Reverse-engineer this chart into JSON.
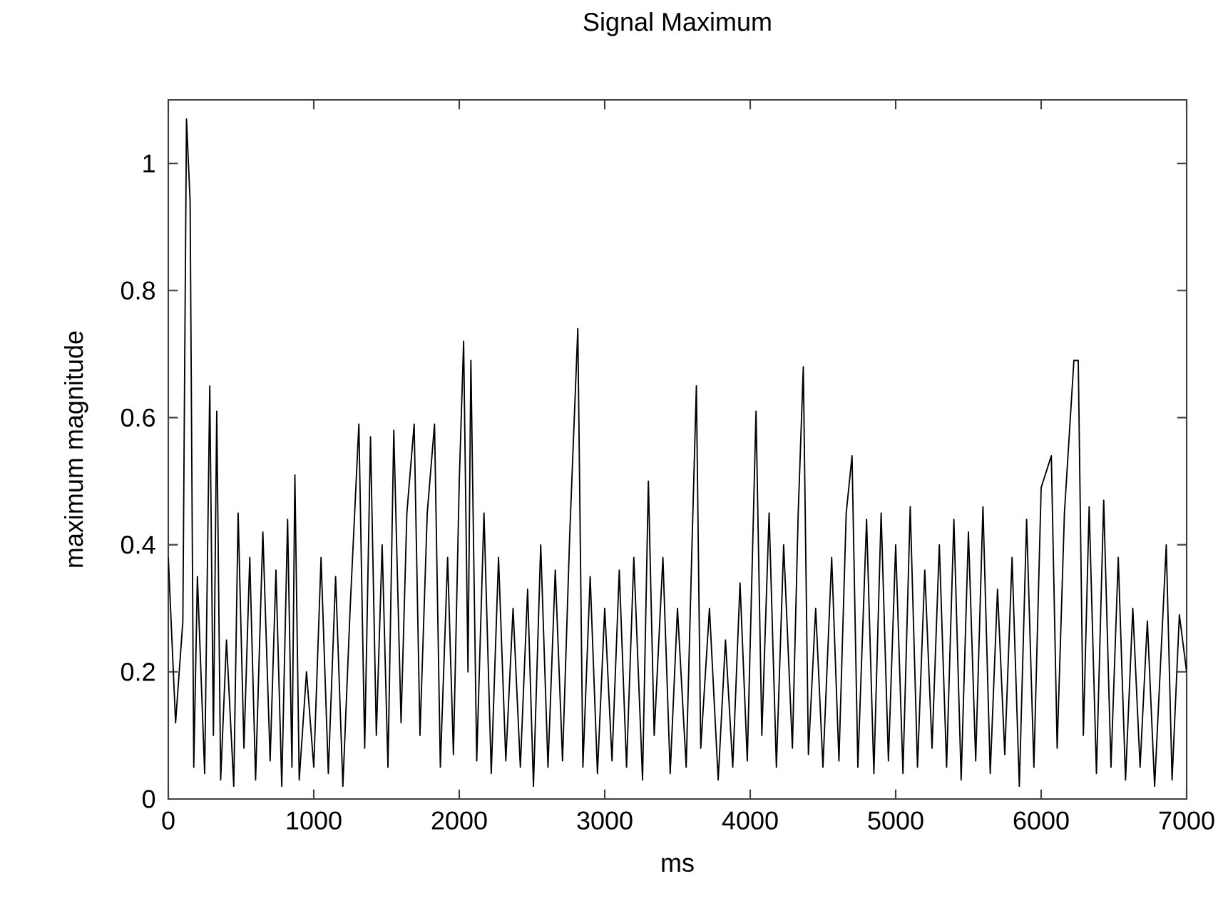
{
  "chart_data": {
    "type": "line",
    "title": "Signal Maximum",
    "xlabel": "ms",
    "ylabel": "maximum magnitude",
    "xlim": [
      0,
      7000
    ],
    "ylim": [
      0,
      1.1
    ],
    "xticks": [
      0,
      1000,
      2000,
      3000,
      4000,
      5000,
      6000,
      7000
    ],
    "yticks": [
      0,
      0.2,
      0.4,
      0.6,
      0.8,
      1
    ],
    "series": [
      {
        "color": "#000000",
        "x": [
          0,
          50,
          100,
          125,
          150,
          175,
          200,
          250,
          285,
          310,
          333,
          360,
          400,
          450,
          480,
          520,
          560,
          600,
          650,
          700,
          740,
          780,
          820,
          850,
          870,
          900,
          950,
          1000,
          1050,
          1100,
          1150,
          1200,
          1250,
          1310,
          1350,
          1390,
          1430,
          1470,
          1510,
          1550,
          1600,
          1640,
          1690,
          1730,
          1780,
          1830,
          1870,
          1920,
          1960,
          2000,
          2030,
          2060,
          2080,
          2120,
          2170,
          2220,
          2270,
          2320,
          2370,
          2420,
          2470,
          2510,
          2560,
          2610,
          2660,
          2710,
          2760,
          2815,
          2850,
          2900,
          2950,
          3000,
          3050,
          3100,
          3150,
          3200,
          3260,
          3300,
          3340,
          3400,
          3450,
          3500,
          3560,
          3600,
          3630,
          3660,
          3720,
          3780,
          3830,
          3880,
          3930,
          3980,
          4040,
          4080,
          4130,
          4180,
          4230,
          4290,
          4330,
          4365,
          4400,
          4450,
          4500,
          4560,
          4610,
          4660,
          4700,
          4740,
          4800,
          4850,
          4900,
          4950,
          5000,
          5050,
          5100,
          5150,
          5200,
          5250,
          5300,
          5350,
          5400,
          5450,
          5500,
          5550,
          5600,
          5650,
          5700,
          5750,
          5800,
          5850,
          5900,
          5950,
          6000,
          6070,
          6110,
          6160,
          6225,
          6255,
          6290,
          6330,
          6380,
          6430,
          6480,
          6530,
          6580,
          6630,
          6680,
          6730,
          6780,
          6860,
          6900,
          6950,
          7000
        ],
        "values": [
          0.38,
          0.12,
          0.28,
          1.07,
          0.94,
          0.05,
          0.35,
          0.04,
          0.65,
          0.1,
          0.61,
          0.03,
          0.25,
          0.02,
          0.45,
          0.08,
          0.38,
          0.03,
          0.42,
          0.06,
          0.36,
          0.02,
          0.44,
          0.05,
          0.51,
          0.03,
          0.2,
          0.05,
          0.38,
          0.04,
          0.35,
          0.02,
          0.3,
          0.59,
          0.08,
          0.57,
          0.1,
          0.4,
          0.05,
          0.58,
          0.12,
          0.45,
          0.59,
          0.1,
          0.45,
          0.59,
          0.05,
          0.38,
          0.07,
          0.5,
          0.72,
          0.2,
          0.69,
          0.06,
          0.45,
          0.04,
          0.38,
          0.06,
          0.3,
          0.05,
          0.33,
          0.02,
          0.4,
          0.05,
          0.36,
          0.06,
          0.42,
          0.74,
          0.05,
          0.35,
          0.04,
          0.3,
          0.06,
          0.36,
          0.05,
          0.38,
          0.03,
          0.5,
          0.1,
          0.38,
          0.04,
          0.3,
          0.05,
          0.4,
          0.65,
          0.08,
          0.3,
          0.03,
          0.25,
          0.05,
          0.34,
          0.06,
          0.61,
          0.1,
          0.45,
          0.05,
          0.4,
          0.08,
          0.45,
          0.68,
          0.07,
          0.3,
          0.05,
          0.38,
          0.06,
          0.45,
          0.54,
          0.05,
          0.44,
          0.04,
          0.45,
          0.06,
          0.4,
          0.04,
          0.46,
          0.05,
          0.36,
          0.08,
          0.4,
          0.05,
          0.44,
          0.03,
          0.42,
          0.06,
          0.46,
          0.04,
          0.33,
          0.07,
          0.38,
          0.02,
          0.44,
          0.05,
          0.49,
          0.54,
          0.08,
          0.45,
          0.69,
          0.69,
          0.1,
          0.46,
          0.04,
          0.47,
          0.05,
          0.38,
          0.03,
          0.3,
          0.05,
          0.28,
          0.02,
          0.4,
          0.03,
          0.29,
          0.2
        ]
      }
    ],
    "legend": false,
    "marker": "none",
    "line_style": "solid"
  }
}
